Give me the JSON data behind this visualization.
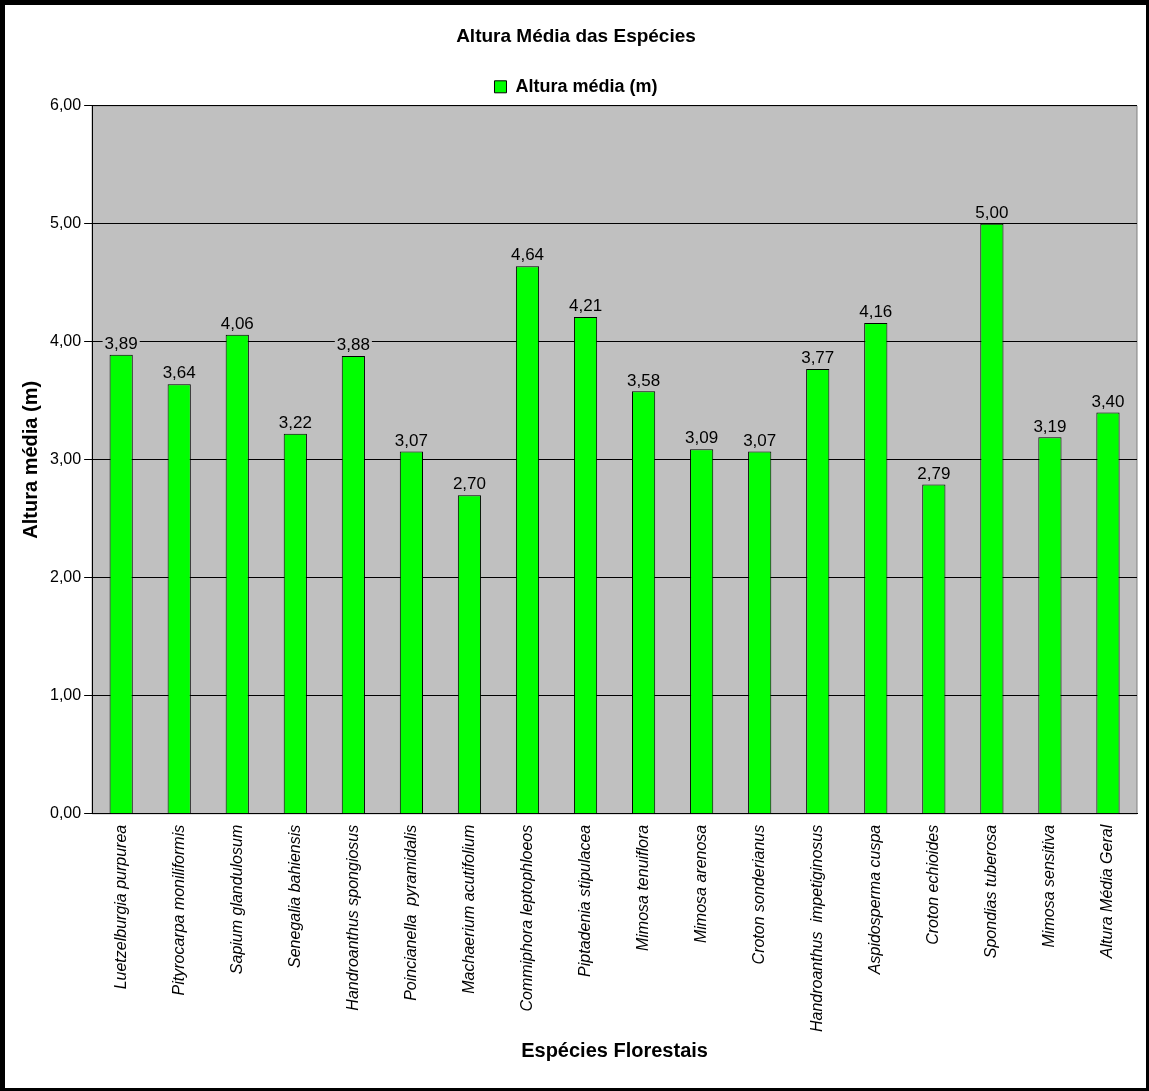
{
  "chart_data": {
    "type": "bar",
    "title": "Altura Média das Espécies",
    "xlabel": "Espécies Florestais",
    "ylabel": "Altura média (m)",
    "categories": [
      "Luetzelburgia purpurea",
      "Pityrocarpa moniliformis",
      "Sapium glandulosum",
      "Senegalia bahiensis",
      "Handroanthus spongiosus",
      "Poincianella  pyramidalis",
      "Machaerium acutifolium",
      "Commiphora leptophloeos",
      "Piptadenia stipulacea",
      "Mimosa tenuiflora",
      "Mimosa arenosa",
      "Croton sonderianus",
      "Handroanthus  impetiginosus",
      "Aspidosperma cuspa",
      "Croton echioides",
      "Spondias tuberosa",
      "Mimosa sensitiva",
      "Altura Média Geral"
    ],
    "series": [
      {
        "name": "Altura média (m)",
        "color": "#00ff00",
        "values": [
          3.89,
          3.64,
          4.06,
          3.22,
          3.88,
          3.07,
          2.7,
          4.64,
          4.21,
          3.58,
          3.09,
          3.07,
          3.77,
          4.16,
          2.79,
          5.0,
          3.19,
          3.4
        ],
        "value_labels": [
          "3,89",
          "3,64",
          "4,06",
          "3,22",
          "3,88",
          "3,07",
          "2,70",
          "4,64",
          "4,21",
          "3,58",
          "3,09",
          "3,07",
          "3,77",
          "4,16",
          "2,79",
          "5,00",
          "3,19",
          "3,40"
        ]
      }
    ],
    "ylim": [
      0,
      6
    ],
    "yticks": [
      {
        "value": 0,
        "label": "0,00"
      },
      {
        "value": 1,
        "label": "1,00"
      },
      {
        "value": 2,
        "label": "2,00"
      },
      {
        "value": 3,
        "label": "3,00"
      },
      {
        "value": 4,
        "label": "4,00"
      },
      {
        "value": 5,
        "label": "5,00"
      },
      {
        "value": 6,
        "label": "6,00"
      }
    ],
    "grid": "y",
    "legend": "top"
  }
}
